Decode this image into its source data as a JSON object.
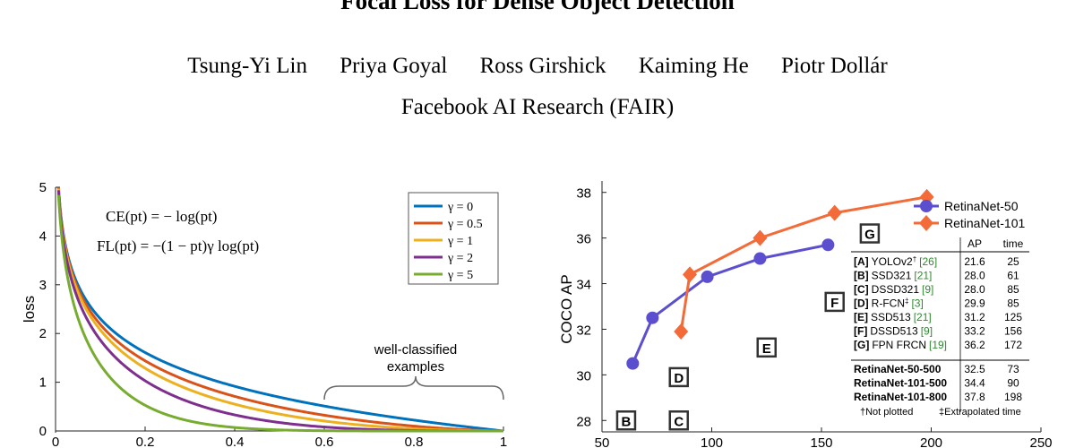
{
  "paper": {
    "title": "Focal Loss for Dense Object Detection",
    "authors": [
      "Tsung-Yi Lin",
      "Priya Goyal",
      "Ross Girshick",
      "Kaiming He",
      "Piotr Dollár"
    ],
    "affiliation": "Facebook AI Research (FAIR)"
  },
  "chart_data": [
    {
      "type": "line",
      "ylabel": "loss",
      "xlim": [
        0,
        1
      ],
      "ylim": [
        0,
        5
      ],
      "x_ticks": [
        "0",
        "0.2",
        "0.4",
        "0.6",
        "0.8",
        "1"
      ],
      "y_ticks": [
        "0",
        "1",
        "2",
        "3",
        "4",
        "5"
      ],
      "equations": [
        "CE(pt) = − log(pt)",
        "FL(pt) = −(1 − pt)γ log(pt)"
      ],
      "annotation": [
        "well-classified",
        "examples"
      ],
      "legend_position": "top-right",
      "series": [
        {
          "name": "γ = 0",
          "gamma": 0,
          "color": "#0072bd"
        },
        {
          "name": "γ = 0.5",
          "gamma": 0.5,
          "color": "#d95319"
        },
        {
          "name": "γ = 1",
          "gamma": 1,
          "color": "#edb120"
        },
        {
          "name": "γ = 2",
          "gamma": 2,
          "color": "#7e2f8e"
        },
        {
          "name": "γ = 5",
          "gamma": 5,
          "color": "#77ac30"
        }
      ]
    },
    {
      "type": "scatter",
      "ylabel": "COCO AP",
      "xlim": [
        50,
        250
      ],
      "ylim": [
        27.5,
        38.5
      ],
      "x_ticks": [
        "50",
        "100",
        "150",
        "200",
        "250"
      ],
      "y_ticks": [
        "28",
        "30",
        "32",
        "34",
        "36",
        "38"
      ],
      "legend_position": "top-right",
      "series": [
        {
          "name": "RetinaNet-50",
          "color": "#5b4fcf",
          "marker": "circle",
          "x": [
            64,
            73,
            98,
            122,
            153
          ],
          "y": [
            30.5,
            32.5,
            34.3,
            35.1,
            35.7
          ]
        },
        {
          "name": "RetinaNet-101",
          "color": "#f26b38",
          "marker": "diamond",
          "x": [
            86,
            90,
            122,
            156,
            198
          ],
          "y": [
            31.9,
            34.4,
            36.0,
            37.1,
            37.8
          ]
        }
      ],
      "point_labels": [
        {
          "label": "B",
          "x": 61,
          "y": 28.0
        },
        {
          "label": "C",
          "x": 85,
          "y": 28.0
        },
        {
          "label": "D",
          "x": 85,
          "y": 29.9
        },
        {
          "label": "E",
          "x": 125,
          "y": 31.2
        },
        {
          "label": "F",
          "x": 156,
          "y": 33.2
        },
        {
          "label": "G",
          "x": 172,
          "y": 36.2
        }
      ],
      "table": {
        "header": [
          "",
          "AP",
          "time"
        ],
        "rows": [
          [
            "[A]",
            "YOLOv2",
            "†",
            "[26]",
            "21.6",
            "25"
          ],
          [
            "[B]",
            "SSD321",
            "",
            "[21]",
            "28.0",
            "61"
          ],
          [
            "[C]",
            "DSSD321",
            "",
            "[9]",
            "28.0",
            "85"
          ],
          [
            "[D]",
            "R-FCN",
            "‡",
            "[3]",
            "29.9",
            "85"
          ],
          [
            "[E]",
            "SSD513",
            "",
            "[21]",
            "31.2",
            "125"
          ],
          [
            "[F]",
            "DSSD513",
            "",
            "[9]",
            "33.2",
            "156"
          ],
          [
            "[G]",
            "FPN FRCN",
            "",
            "[19]",
            "36.2",
            "172"
          ]
        ],
        "ours": [
          [
            "RetinaNet-50-500",
            "32.5",
            "73"
          ],
          [
            "RetinaNet-101-500",
            "34.4",
            "90"
          ],
          [
            "RetinaNet-101-800",
            "37.8",
            "198"
          ]
        ],
        "footnote": [
          "†Not plotted",
          "‡Extrapolated time"
        ],
        "cite_color": "#2e8b2e"
      }
    }
  ]
}
